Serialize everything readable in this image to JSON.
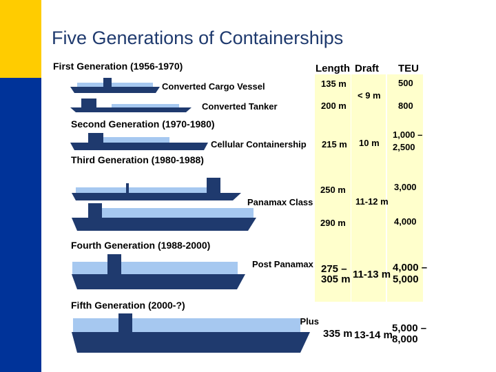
{
  "title": "Five Generations of Containerships",
  "headers": {
    "length": "Length",
    "draft": "Draft",
    "teu": "TEU"
  },
  "generations": [
    {
      "label": "First Generation (1956-1970)",
      "ships": [
        {
          "type": "Converted Cargo Vessel",
          "length": "135 m",
          "teu": "500"
        },
        {
          "type": "Converted Tanker",
          "length": "200 m",
          "teu": "800"
        }
      ],
      "draft": "< 9 m"
    },
    {
      "label": "Second Generation (1970-1980)",
      "ships": [
        {
          "type": "Cellular Containership",
          "length": "215 m",
          "draft": "10 m",
          "teu_line1": "1,000 –",
          "teu_line2": "2,500"
        }
      ]
    },
    {
      "label": "Third Generation (1980-1988)",
      "class": "Panamax Class",
      "ships": [
        {
          "length": "250 m",
          "teu": "3,000"
        },
        {
          "length": "290 m",
          "teu": "4,000"
        }
      ],
      "draft": "11-12 m"
    },
    {
      "label": "Fourth Generation (1988-2000)",
      "type": "Post Panamax",
      "length_line1": "275 –",
      "length_line2": "305 m",
      "draft": "11-13 m",
      "teu_line1": "4,000 –",
      "teu_line2": "5,000"
    },
    {
      "label": "Fifth Generation (2000-?)",
      "type": "Post Panamax Plus",
      "length": "335 m",
      "draft": "13-14 m",
      "teu_line1": "5,000 –",
      "teu_line2": "8,000"
    }
  ],
  "colors": {
    "accent_yellow": "#ffcc00",
    "accent_blue": "#003399",
    "hull": "#1f3a6e",
    "containers": "#a6c8f0",
    "column_bg": "#ffffcc",
    "title": "#1f3a6e"
  }
}
